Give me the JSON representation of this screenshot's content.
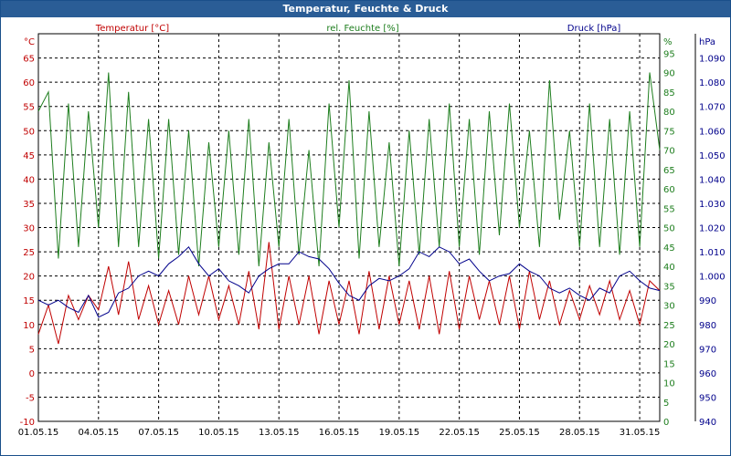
{
  "window": {
    "title": "Temperatur, Feuchte & Druck"
  },
  "colors": {
    "temperature": "#c00000",
    "humidity": "#1e7e1e",
    "pressure": "#00008b",
    "grid": "#000000",
    "title_bar": "#2a5d96"
  },
  "chart_data": {
    "type": "line",
    "title": "Temperatur, Feuchte & Druck",
    "grid": true,
    "x_ticks": [
      "01.05.15",
      "04.05.15",
      "07.05.15",
      "10.05.15",
      "13.05.15",
      "16.05.15",
      "19.05.15",
      "22.05.15",
      "25.05.15",
      "28.05.15",
      "31.05.15"
    ],
    "x_range": [
      "01.05.15",
      "01.06.15"
    ],
    "axes": {
      "temperature": {
        "unit": "°C",
        "range": [
          -10,
          70
        ],
        "ticks": [
          "-10",
          "-5",
          "0",
          "5",
          "10",
          "15",
          "20",
          "25",
          "30",
          "35",
          "40",
          "45",
          "50",
          "55",
          "60",
          "65"
        ]
      },
      "humidity": {
        "unit": "%",
        "range": [
          0,
          100
        ],
        "ticks": [
          "0",
          "5",
          "10",
          "15",
          "20",
          "25",
          "30",
          "35",
          "40",
          "45",
          "50",
          "55",
          "60",
          "65",
          "70",
          "75",
          "80",
          "85",
          "90",
          "95"
        ]
      },
      "pressure": {
        "unit": "hPa",
        "range": [
          940,
          1100
        ],
        "ticks": [
          "940",
          "950",
          "960",
          "970",
          "980",
          "990",
          "1.000",
          "1.010",
          "1.020",
          "1.030",
          "1.040",
          "1.050",
          "1.060",
          "1.070",
          "1.080",
          "1.090"
        ]
      }
    },
    "series": [
      {
        "name": "Temperatur [°C]",
        "axis": "temperature",
        "x": [
          0,
          0.5,
          1,
          1.5,
          2,
          2.5,
          3,
          3.5,
          4,
          4.5,
          5,
          5.5,
          6,
          6.5,
          7,
          7.5,
          8,
          8.5,
          9,
          9.5,
          10,
          10.5,
          11,
          11.5,
          12,
          12.5,
          13,
          13.5,
          14,
          14.5,
          15,
          15.5,
          16,
          16.5,
          17,
          17.5,
          18,
          18.5,
          19,
          19.5,
          20,
          20.5,
          21,
          21.5,
          22,
          22.5,
          23,
          23.5,
          24,
          24.5,
          25,
          25.5,
          26,
          26.5,
          27,
          27.5,
          28,
          28.5,
          29,
          29.5,
          30,
          30.5,
          31
        ],
        "values": [
          8,
          14,
          6,
          16,
          11,
          16,
          13,
          22,
          12,
          23,
          11,
          18,
          10,
          17,
          10,
          20,
          12,
          20,
          11,
          18,
          10,
          21,
          9,
          27,
          9,
          20,
          10,
          20,
          8,
          19,
          10,
          19,
          8,
          21,
          9,
          20,
          10,
          19,
          9,
          20,
          8,
          21,
          9,
          20,
          11,
          19,
          10,
          20,
          9,
          21,
          11,
          19,
          10,
          17,
          11,
          18,
          12,
          19,
          11,
          17,
          10,
          19,
          17
        ]
      },
      {
        "name": "rel. Feuchte [%]",
        "axis": "humidity",
        "x": [
          0,
          0.5,
          1,
          1.5,
          2,
          2.5,
          3,
          3.5,
          4,
          4.5,
          5,
          5.5,
          6,
          6.5,
          7,
          7.5,
          8,
          8.5,
          9,
          9.5,
          10,
          10.5,
          11,
          11.5,
          12,
          12.5,
          13,
          13.5,
          14,
          14.5,
          15,
          15.5,
          16,
          16.5,
          17,
          17.5,
          18,
          18.5,
          19,
          19.5,
          20,
          20.5,
          21,
          21.5,
          22,
          22.5,
          23,
          23.5,
          24,
          24.5,
          25,
          25.5,
          26,
          26.5,
          27,
          27.5,
          28,
          28.5,
          29,
          29.5,
          30,
          30.5,
          31
        ],
        "values": [
          80,
          85,
          42,
          82,
          45,
          80,
          50,
          90,
          45,
          85,
          45,
          78,
          42,
          78,
          43,
          75,
          40,
          72,
          45,
          75,
          43,
          78,
          40,
          72,
          45,
          78,
          43,
          70,
          40,
          82,
          50,
          88,
          42,
          80,
          45,
          72,
          40,
          75,
          43,
          78,
          45,
          82,
          45,
          78,
          43,
          80,
          48,
          82,
          50,
          75,
          45,
          88,
          52,
          75,
          45,
          82,
          45,
          78,
          43,
          80,
          45,
          90,
          70
        ]
      },
      {
        "name": "Druck [hPa]",
        "axis": "pressure",
        "x": [
          0,
          0.5,
          1,
          1.5,
          2,
          2.5,
          3,
          3.5,
          4,
          4.5,
          5,
          5.5,
          6,
          6.5,
          7,
          7.5,
          8,
          8.5,
          9,
          9.5,
          10,
          10.5,
          11,
          11.5,
          12,
          12.5,
          13,
          13.5,
          14,
          14.5,
          15,
          15.5,
          16,
          16.5,
          17,
          17.5,
          18,
          18.5,
          19,
          19.5,
          20,
          20.5,
          21,
          21.5,
          22,
          22.5,
          23,
          23.5,
          24,
          24.5,
          25,
          25.5,
          26,
          26.5,
          27,
          27.5,
          28,
          28.5,
          29,
          29.5,
          30,
          30.5,
          31
        ],
        "values": [
          990,
          988,
          990,
          987,
          985,
          992,
          983,
          985,
          993,
          995,
          1000,
          1002,
          1000,
          1005,
          1008,
          1012,
          1005,
          1000,
          1003,
          998,
          996,
          993,
          1000,
          1003,
          1005,
          1005,
          1010,
          1008,
          1007,
          1003,
          997,
          992,
          990,
          996,
          999,
          998,
          1000,
          1003,
          1010,
          1008,
          1012,
          1010,
          1005,
          1007,
          1002,
          998,
          1000,
          1001,
          1005,
          1002,
          1000,
          995,
          993,
          995,
          992,
          990,
          995,
          993,
          1000,
          1002,
          998,
          995,
          994
        ]
      }
    ]
  }
}
